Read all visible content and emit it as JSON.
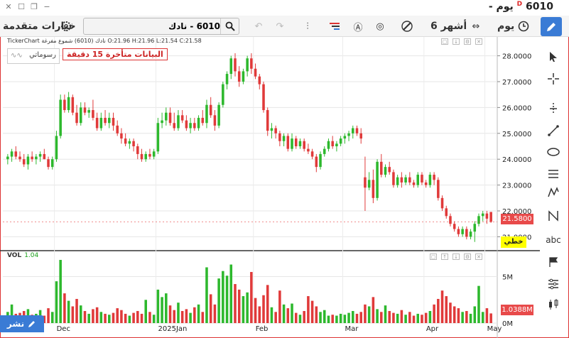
{
  "window": {
    "title_symbol": "6010",
    "title_period": "يوم -",
    "delayed_flag": "D"
  },
  "toolbar": {
    "advanced_options_label": "خيارات متقدمة",
    "search_value": "6010 - نادك",
    "period_label": "6 أشهر",
    "interval_label": "يوم"
  },
  "chart_header": {
    "ohlc_text": "TickerChart نادك (6010) شموع مفرغة  O:21.96  H:21.96  L:21.54  C:21.58",
    "delay_notice": "البيانات متأخرة 15 دقيقة",
    "chart_type_label": "رسوماتي"
  },
  "tags": {
    "last_price": "21.5800",
    "line_tag": "خطي",
    "last_volume": "1.0388M"
  },
  "volume_label": {
    "name": "VOL",
    "value": "1.04"
  },
  "share_button": "نشر",
  "colors": {
    "up": "#2db82d",
    "down": "#e03a3a",
    "accent": "#3a7bd5"
  },
  "chart_data": {
    "type": "candlestick",
    "x_ticks": [
      "Dec",
      "2025Jan",
      "Feb",
      "Mar",
      "Apr",
      "May"
    ],
    "y_ticks": [
      "28.0000",
      "27.0000",
      "26.0000",
      "25.0000",
      "24.0000",
      "23.0000",
      "22.0000",
      "21.0000"
    ],
    "ylim": [
      20.6,
      28.4
    ],
    "volume_ticks": [
      "5M",
      "0M"
    ],
    "volume_max": 6.8,
    "candles": [
      [
        24.0,
        24.2,
        23.8,
        24.1,
        1.2
      ],
      [
        24.1,
        24.4,
        23.9,
        24.3,
        2.0
      ],
      [
        24.3,
        24.5,
        24.0,
        24.1,
        1.0
      ],
      [
        24.1,
        24.3,
        23.9,
        24.0,
        1.1
      ],
      [
        24.0,
        24.2,
        23.7,
        23.8,
        1.3
      ],
      [
        23.8,
        24.2,
        23.6,
        24.1,
        1.5
      ],
      [
        24.1,
        24.3,
        23.9,
        24.0,
        0.9
      ],
      [
        24.0,
        24.2,
        23.8,
        24.1,
        1.0
      ],
      [
        24.1,
        24.3,
        23.9,
        24.2,
        1.4
      ],
      [
        24.2,
        24.4,
        24.0,
        24.0,
        0.8
      ],
      [
        24.0,
        24.1,
        23.6,
        23.7,
        1.6
      ],
      [
        23.7,
        24.1,
        23.6,
        24.0,
        1.2
      ],
      [
        24.0,
        25.1,
        23.9,
        24.9,
        4.5
      ],
      [
        24.9,
        26.5,
        24.8,
        26.3,
        6.8
      ],
      [
        26.3,
        26.5,
        25.8,
        25.9,
        3.2
      ],
      [
        25.9,
        26.6,
        25.8,
        26.4,
        2.4
      ],
      [
        26.4,
        26.5,
        25.7,
        25.8,
        1.8
      ],
      [
        25.8,
        26.1,
        25.3,
        25.4,
        2.6
      ],
      [
        25.4,
        26.2,
        25.3,
        26.0,
        1.9
      ],
      [
        26.0,
        26.2,
        25.7,
        25.8,
        1.3
      ],
      [
        25.8,
        26.0,
        25.6,
        25.9,
        1.0
      ],
      [
        25.9,
        26.3,
        25.5,
        25.6,
        1.5
      ],
      [
        25.6,
        25.8,
        25.1,
        25.2,
        1.7
      ],
      [
        25.2,
        25.8,
        25.1,
        25.6,
        1.2
      ],
      [
        25.6,
        25.9,
        25.3,
        25.4,
        1.0
      ],
      [
        25.4,
        25.8,
        25.2,
        25.6,
        0.9
      ],
      [
        25.6,
        25.8,
        25.1,
        25.3,
        1.1
      ],
      [
        25.3,
        25.5,
        24.9,
        25.0,
        1.6
      ],
      [
        25.0,
        25.2,
        24.6,
        24.8,
        1.4
      ],
      [
        24.8,
        25.0,
        24.5,
        24.6,
        1.0
      ],
      [
        24.6,
        24.8,
        24.4,
        24.7,
        0.8
      ],
      [
        24.7,
        24.8,
        24.3,
        24.5,
        1.1
      ],
      [
        24.5,
        24.6,
        24.0,
        24.2,
        1.3
      ],
      [
        24.2,
        24.4,
        23.9,
        24.0,
        1.0
      ],
      [
        24.0,
        24.3,
        23.9,
        24.2,
        2.5
      ],
      [
        24.2,
        24.4,
        24.0,
        24.1,
        1.2
      ],
      [
        24.1,
        24.4,
        24.0,
        24.3,
        0.9
      ],
      [
        24.3,
        25.6,
        24.2,
        25.4,
        3.6
      ],
      [
        25.4,
        25.8,
        25.2,
        25.5,
        2.8
      ],
      [
        25.5,
        26.0,
        25.3,
        25.8,
        3.2
      ],
      [
        25.8,
        26.0,
        25.3,
        25.4,
        1.9
      ],
      [
        25.4,
        25.8,
        25.1,
        25.2,
        1.4
      ],
      [
        25.2,
        25.9,
        25.1,
        25.7,
        2.2
      ],
      [
        25.7,
        25.9,
        25.4,
        25.5,
        1.3
      ],
      [
        25.5,
        25.7,
        25.1,
        25.2,
        1.5
      ],
      [
        25.2,
        25.6,
        25.0,
        25.4,
        1.1
      ],
      [
        25.4,
        25.6,
        25.1,
        25.2,
        1.7
      ],
      [
        25.2,
        25.7,
        25.1,
        25.6,
        2.0
      ],
      [
        25.6,
        25.9,
        25.3,
        25.4,
        1.2
      ],
      [
        25.4,
        26.3,
        25.2,
        26.1,
        6.0
      ],
      [
        26.1,
        26.4,
        25.6,
        25.7,
        3.1
      ],
      [
        25.7,
        25.9,
        25.1,
        25.3,
        2.0
      ],
      [
        25.3,
        26.2,
        25.2,
        26.1,
        4.8
      ],
      [
        26.1,
        27.0,
        26.0,
        26.9,
        5.6
      ],
      [
        26.9,
        27.4,
        26.7,
        27.3,
        5.1
      ],
      [
        27.3,
        28.0,
        27.1,
        27.9,
        6.3
      ],
      [
        27.9,
        28.1,
        27.2,
        27.4,
        4.2
      ],
      [
        27.4,
        27.6,
        26.8,
        27.0,
        3.6
      ],
      [
        27.0,
        27.5,
        26.9,
        27.4,
        2.9
      ],
      [
        27.4,
        28.0,
        27.2,
        27.9,
        3.3
      ],
      [
        27.9,
        28.1,
        27.3,
        27.5,
        5.5
      ],
      [
        27.5,
        27.7,
        27.1,
        27.2,
        2.7
      ],
      [
        27.2,
        27.3,
        26.7,
        26.9,
        1.8
      ],
      [
        26.9,
        27.0,
        25.8,
        25.9,
        3.0
      ],
      [
        25.9,
        26.0,
        24.9,
        25.1,
        4.1
      ],
      [
        25.1,
        25.4,
        24.8,
        25.2,
        1.7
      ],
      [
        25.2,
        25.3,
        24.8,
        25.0,
        1.2
      ],
      [
        25.0,
        25.1,
        24.5,
        24.7,
        3.5
      ],
      [
        24.7,
        25.0,
        24.5,
        24.9,
        2.0
      ],
      [
        24.9,
        25.0,
        24.3,
        24.4,
        1.6
      ],
      [
        24.4,
        25.0,
        24.3,
        24.8,
        2.1
      ],
      [
        24.8,
        24.9,
        24.4,
        24.5,
        1.1
      ],
      [
        24.5,
        24.8,
        24.4,
        24.7,
        0.9
      ],
      [
        24.7,
        24.8,
        24.3,
        24.4,
        1.3
      ],
      [
        24.4,
        24.6,
        24.2,
        24.3,
        2.9
      ],
      [
        24.3,
        24.4,
        24.0,
        24.1,
        2.4
      ],
      [
        24.1,
        24.2,
        23.5,
        23.7,
        1.8
      ],
      [
        23.7,
        24.3,
        23.6,
        24.2,
        1.2
      ],
      [
        24.2,
        24.5,
        24.1,
        24.4,
        1.4
      ],
      [
        24.4,
        24.8,
        24.3,
        24.7,
        0.8
      ],
      [
        24.7,
        24.9,
        24.4,
        24.5,
        0.9
      ],
      [
        24.5,
        24.7,
        24.3,
        24.6,
        0.8
      ],
      [
        24.6,
        24.9,
        24.5,
        24.8,
        1.0
      ],
      [
        24.8,
        25.0,
        24.6,
        24.9,
        0.9
      ],
      [
        24.9,
        25.1,
        24.7,
        25.0,
        1.1
      ],
      [
        25.0,
        25.3,
        24.8,
        25.2,
        1.3
      ],
      [
        25.2,
        25.3,
        24.9,
        25.0,
        1.0
      ],
      [
        25.0,
        25.2,
        24.6,
        24.8,
        1.2
      ],
      [
        23.3,
        24.1,
        22.0,
        22.9,
        2.0
      ],
      [
        22.9,
        23.5,
        22.8,
        23.2,
        1.8
      ],
      [
        23.2,
        23.6,
        22.3,
        22.5,
        2.8
      ],
      [
        22.5,
        24.0,
        22.4,
        23.9,
        1.5
      ],
      [
        23.9,
        24.2,
        23.3,
        23.4,
        1.2
      ],
      [
        23.4,
        23.8,
        23.3,
        23.7,
        1.9
      ],
      [
        23.7,
        23.9,
        23.4,
        23.5,
        1.3
      ],
      [
        23.5,
        23.6,
        22.9,
        23.0,
        1.1
      ],
      [
        23.0,
        23.4,
        22.9,
        23.3,
        1.0
      ],
      [
        23.3,
        23.5,
        22.9,
        23.1,
        1.4
      ],
      [
        23.1,
        23.4,
        23.0,
        23.3,
        0.9
      ],
      [
        23.3,
        23.5,
        23.0,
        23.1,
        1.2
      ],
      [
        23.1,
        23.2,
        22.9,
        23.0,
        0.8
      ],
      [
        23.0,
        23.5,
        22.9,
        23.4,
        1.0
      ],
      [
        23.4,
        23.5,
        23.0,
        23.1,
        0.9
      ],
      [
        23.1,
        23.2,
        22.9,
        23.0,
        1.1
      ],
      [
        23.0,
        23.5,
        22.9,
        23.4,
        1.3
      ],
      [
        23.4,
        23.5,
        23.0,
        23.2,
        2.0
      ],
      [
        23.2,
        23.3,
        22.4,
        22.5,
        2.6
      ],
      [
        22.5,
        22.6,
        22.0,
        22.1,
        3.5
      ],
      [
        22.1,
        22.2,
        21.7,
        21.8,
        2.9
      ],
      [
        21.8,
        21.9,
        21.4,
        21.5,
        2.2
      ],
      [
        21.5,
        21.6,
        21.2,
        21.3,
        1.8
      ],
      [
        21.3,
        21.4,
        21.0,
        21.1,
        1.6
      ],
      [
        21.1,
        21.4,
        21.0,
        21.3,
        1.2
      ],
      [
        21.3,
        21.4,
        20.9,
        21.0,
        1.3
      ],
      [
        21.0,
        21.3,
        20.9,
        21.2,
        1.0
      ],
      [
        21.2,
        21.6,
        20.8,
        21.5,
        1.8
      ],
      [
        21.5,
        21.9,
        21.4,
        21.8,
        4.0
      ],
      [
        21.8,
        22.0,
        21.6,
        21.9,
        1.2
      ],
      [
        21.9,
        22.0,
        21.5,
        21.7,
        1.6
      ],
      [
        21.96,
        21.96,
        21.54,
        21.58,
        1.04
      ]
    ]
  }
}
